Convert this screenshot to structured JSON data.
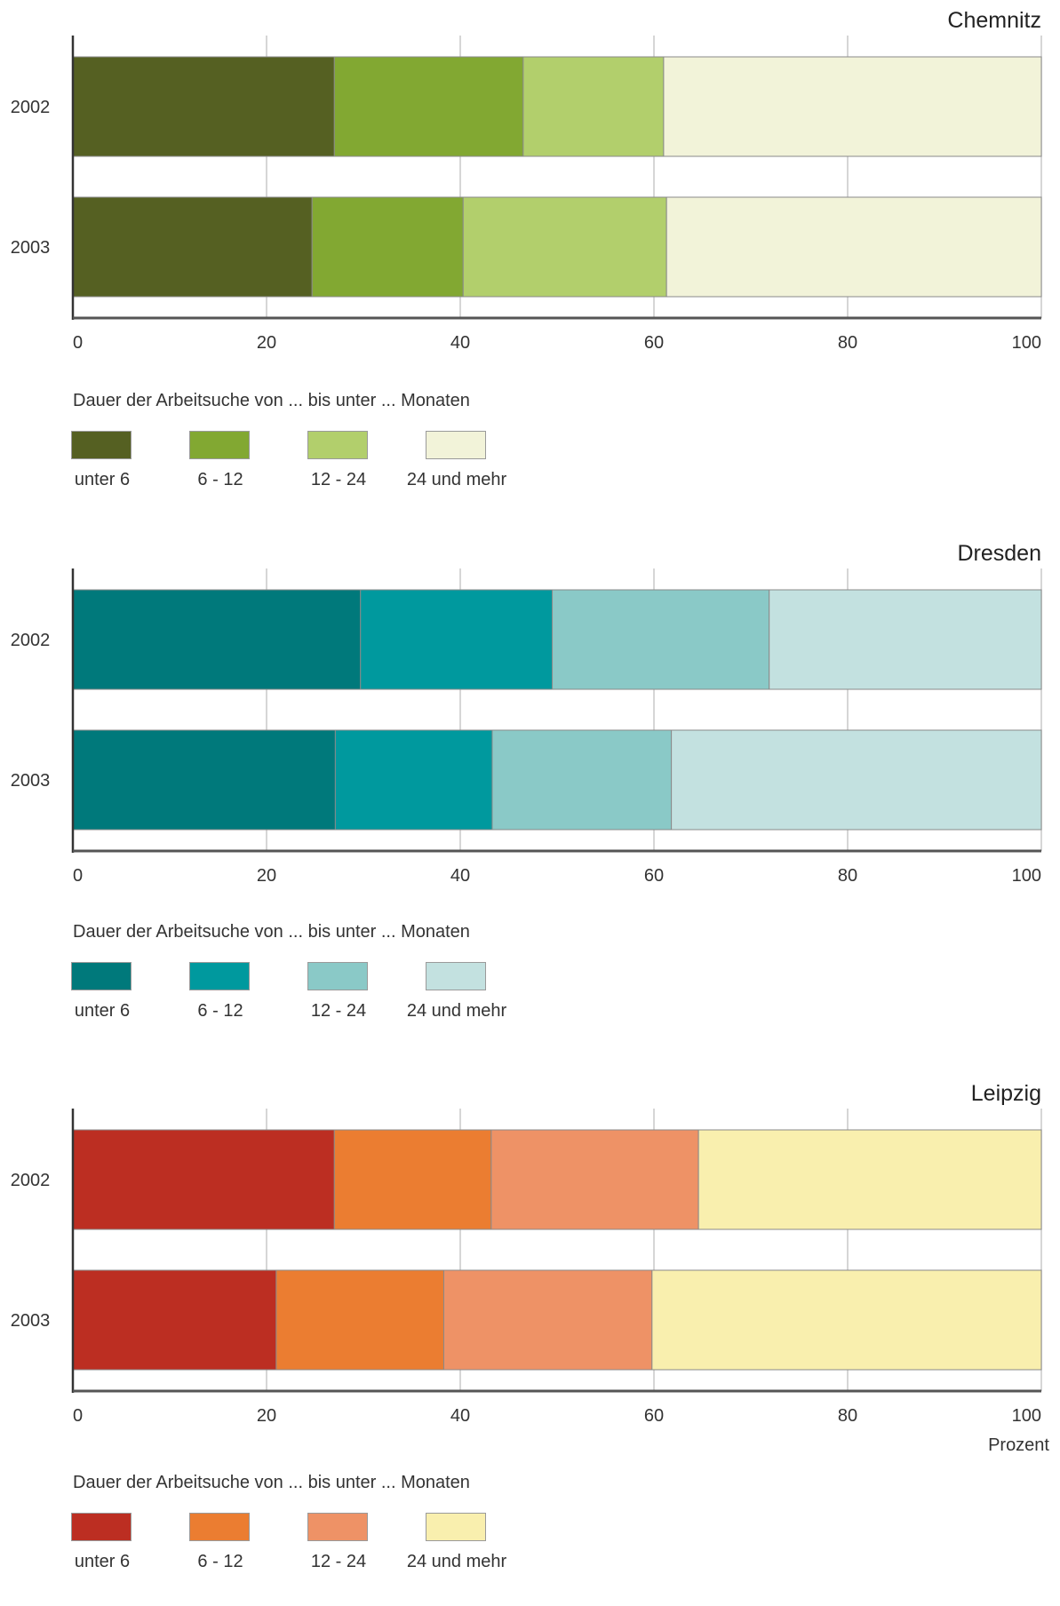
{
  "legend_title": "Dauer der Arbeitsuche von ... bis unter ... Monaten",
  "unit_label": "Prozent",
  "chart_data": [
    {
      "type": "bar",
      "stacked": true,
      "orientation": "horizontal",
      "title": "Chemnitz",
      "categories": [
        "2002",
        "2003"
      ],
      "xlim": [
        0,
        100
      ],
      "xticks": [
        "0",
        "20",
        "40",
        "60",
        "80",
        "100"
      ],
      "grid": true,
      "series": [
        {
          "name": "unter 6",
          "color": "#556022",
          "values": [
            27,
            24.7
          ]
        },
        {
          "name": "6 - 12",
          "color": "#82a832",
          "values": [
            19.5,
            15.6
          ]
        },
        {
          "name": "12 - 24",
          "color": "#b2cf6c",
          "values": [
            14.5,
            21
          ]
        },
        {
          "name": "24 und mehr",
          "color": "#f2f3d9",
          "values": [
            39,
            38.7
          ]
        }
      ]
    },
    {
      "type": "bar",
      "stacked": true,
      "orientation": "horizontal",
      "title": "Dresden",
      "categories": [
        "2002",
        "2003"
      ],
      "xlim": [
        0,
        100
      ],
      "xticks": [
        "0",
        "20",
        "40",
        "60",
        "80",
        "100"
      ],
      "grid": true,
      "series": [
        {
          "name": "unter 6",
          "color": "#00797b",
          "values": [
            29.7,
            27.1
          ]
        },
        {
          "name": "6 - 12",
          "color": "#00999e",
          "values": [
            19.8,
            16.2
          ]
        },
        {
          "name": "12 - 24",
          "color": "#8ac9c7",
          "values": [
            22.4,
            18.5
          ]
        },
        {
          "name": "24 und mehr",
          "color": "#c3e1e0",
          "values": [
            28.1,
            38.2
          ]
        }
      ]
    },
    {
      "type": "bar",
      "stacked": true,
      "orientation": "horizontal",
      "title": "Leipzig",
      "categories": [
        "2002",
        "2003"
      ],
      "xlim": [
        0,
        100
      ],
      "xticks": [
        "0",
        "20",
        "40",
        "60",
        "80",
        "100"
      ],
      "grid": true,
      "series": [
        {
          "name": "unter 6",
          "color": "#bc2e22",
          "values": [
            27,
            21
          ]
        },
        {
          "name": "6 - 12",
          "color": "#eb7d31",
          "values": [
            16.2,
            17.3
          ]
        },
        {
          "name": "12 - 24",
          "color": "#ee9266",
          "values": [
            21.4,
            21.5
          ]
        },
        {
          "name": "24 und mehr",
          "color": "#f9efae",
          "values": [
            35.4,
            40.2
          ]
        }
      ]
    }
  ]
}
